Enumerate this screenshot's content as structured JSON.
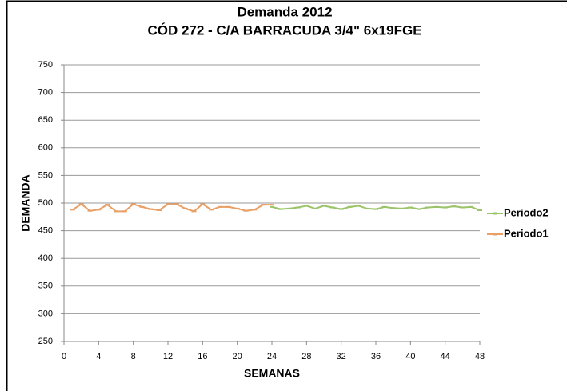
{
  "chart_data": {
    "type": "line",
    "title": "Demanda 2012",
    "subtitle": "CÓD 272 - C/A BARRACUDA 3/4\" 6x19FGE",
    "x_label": "SEMANAS",
    "y_label": "DEMANDA",
    "x": [
      1,
      2,
      3,
      4,
      5,
      6,
      7,
      8,
      9,
      10,
      11,
      12,
      13,
      14,
      15,
      16,
      17,
      18,
      19,
      20,
      21,
      22,
      23,
      24,
      25,
      26,
      27,
      28,
      29,
      30,
      31,
      32,
      33,
      34,
      35,
      36,
      37,
      38,
      39,
      40,
      41,
      42,
      43,
      44,
      45,
      46,
      47,
      48
    ],
    "series": [
      {
        "name": "Periodo2",
        "color": "#9bc46a",
        "values": [
          null,
          null,
          null,
          null,
          null,
          null,
          null,
          null,
          null,
          null,
          null,
          null,
          null,
          null,
          null,
          null,
          null,
          null,
          null,
          null,
          null,
          null,
          null,
          493,
          489,
          490,
          492,
          495,
          490,
          495,
          492,
          489,
          493,
          495,
          490,
          489,
          493,
          491,
          490,
          492,
          489,
          492,
          493,
          492,
          494,
          492,
          493,
          487
        ]
      },
      {
        "name": "Periodo1",
        "color": "#e9a066",
        "values": [
          488,
          498,
          486,
          488,
          497,
          485,
          485,
          498,
          493,
          489,
          487,
          498,
          498,
          490,
          485,
          498,
          488,
          493,
          493,
          490,
          486,
          488,
          497,
          497,
          null,
          null,
          null,
          null,
          null,
          null,
          null,
          null,
          null,
          null,
          null,
          null,
          null,
          null,
          null,
          null,
          null,
          null,
          null,
          null,
          null,
          null,
          null,
          null
        ]
      }
    ],
    "xlim": [
      0,
      48
    ],
    "xticks": [
      0,
      4,
      8,
      12,
      16,
      20,
      24,
      28,
      32,
      36,
      40,
      44,
      48
    ],
    "ylim": [
      250,
      750
    ],
    "yticks": [
      250,
      300,
      350,
      400,
      450,
      500,
      550,
      600,
      650,
      700,
      750
    ],
    "grid": true,
    "legend": "right"
  }
}
